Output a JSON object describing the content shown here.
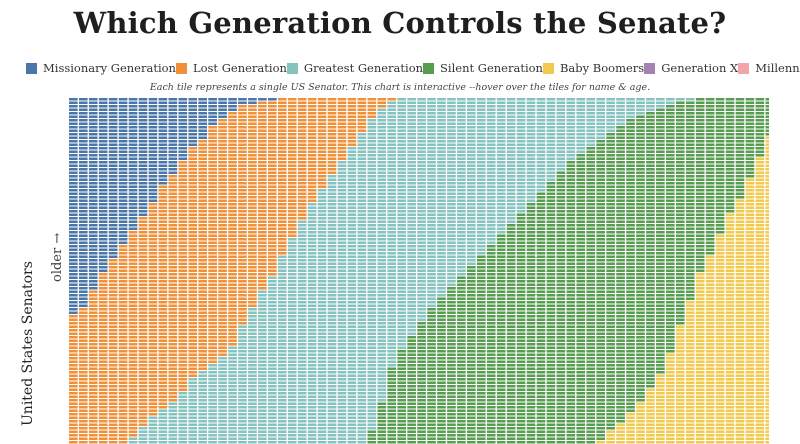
{
  "chart_data": {
    "type": "heatmap",
    "title": "Which Generation Controls the Senate?",
    "subtitle": "Each tile represents a single US Senator. This chart is interactive --hover over the tiles for name & age.",
    "ylabel": "United States Senators",
    "y_direction_label": "older →",
    "grid": false,
    "legend_position": "top",
    "series": [
      {
        "name": "Missionary Generation",
        "color": "#4a77a8"
      },
      {
        "name": "Lost Generation",
        "color": "#f0913a"
      },
      {
        "name": "Greatest Generation",
        "color": "#84c3bf"
      },
      {
        "name": "Silent Generation",
        "color": "#569d4f"
      },
      {
        "name": "Baby Boomers",
        "color": "#f1ca4d"
      },
      {
        "name": "Generation X",
        "color": "#a681b4"
      },
      {
        "name": "Millennials",
        "color": "#f3a6a9"
      }
    ],
    "columns": [
      {
        "Missionary Generation": 62,
        "Lost Generation": 38
      },
      {
        "Missionary Generation": 60,
        "Lost Generation": 40
      },
      {
        "Missionary Generation": 55,
        "Lost Generation": 45
      },
      {
        "Missionary Generation": 50,
        "Lost Generation": 50
      },
      {
        "Missionary Generation": 46,
        "Lost Generation": 54
      },
      {
        "Missionary Generation": 42,
        "Lost Generation": 57,
        "Greatest Generation": 1
      },
      {
        "Missionary Generation": 38,
        "Lost Generation": 59,
        "Greatest Generation": 3
      },
      {
        "Missionary Generation": 34,
        "Lost Generation": 60,
        "Greatest Generation": 6
      },
      {
        "Missionary Generation": 30,
        "Lost Generation": 61,
        "Greatest Generation": 9
      },
      {
        "Missionary Generation": 25,
        "Lost Generation": 64,
        "Greatest Generation": 11
      },
      {
        "Missionary Generation": 22,
        "Lost Generation": 65,
        "Greatest Generation": 13
      },
      {
        "Missionary Generation": 18,
        "Lost Generation": 66,
        "Greatest Generation": 16
      },
      {
        "Missionary Generation": 14,
        "Lost Generation": 66,
        "Greatest Generation": 20
      },
      {
        "Missionary Generation": 12,
        "Lost Generation": 66,
        "Greatest Generation": 22
      },
      {
        "Missionary Generation": 8,
        "Lost Generation": 68,
        "Greatest Generation": 24
      },
      {
        "Missionary Generation": 6,
        "Lost Generation": 68,
        "Greatest Generation": 26
      },
      {
        "Missionary Generation": 4,
        "Lost Generation": 67,
        "Greatest Generation": 29
      },
      {
        "Missionary Generation": 2,
        "Lost Generation": 63,
        "Greatest Generation": 35
      },
      {
        "Missionary Generation": 2,
        "Lost Generation": 58,
        "Greatest Generation": 40
      },
      {
        "Missionary Generation": 1,
        "Lost Generation": 54,
        "Greatest Generation": 45
      },
      {
        "Missionary Generation": 1,
        "Lost Generation": 50,
        "Greatest Generation": 49
      },
      {
        "Lost Generation": 45,
        "Greatest Generation": 55
      },
      {
        "Lost Generation": 40,
        "Greatest Generation": 60
      },
      {
        "Lost Generation": 35,
        "Greatest Generation": 65
      },
      {
        "Lost Generation": 30,
        "Greatest Generation": 70
      },
      {
        "Lost Generation": 26,
        "Greatest Generation": 74
      },
      {
        "Lost Generation": 22,
        "Greatest Generation": 78
      },
      {
        "Lost Generation": 18,
        "Greatest Generation": 82
      },
      {
        "Lost Generation": 14,
        "Greatest Generation": 86
      },
      {
        "Lost Generation": 10,
        "Greatest Generation": 89,
        "Silent Generation": 1
      },
      {
        "Lost Generation": 6,
        "Greatest Generation": 89,
        "Silent Generation": 5
      },
      {
        "Lost Generation": 3,
        "Greatest Generation": 84,
        "Silent Generation": 13
      },
      {
        "Lost Generation": 1,
        "Greatest Generation": 76,
        "Silent Generation": 23
      },
      {
        "Greatest Generation": 72,
        "Silent Generation": 28
      },
      {
        "Greatest Generation": 68,
        "Silent Generation": 32
      },
      {
        "Greatest Generation": 64,
        "Silent Generation": 36
      },
      {
        "Greatest Generation": 60,
        "Silent Generation": 40
      },
      {
        "Greatest Generation": 57,
        "Silent Generation": 43
      },
      {
        "Greatest Generation": 54,
        "Silent Generation": 46
      },
      {
        "Greatest Generation": 51,
        "Silent Generation": 49
      },
      {
        "Greatest Generation": 48,
        "Silent Generation": 52
      },
      {
        "Greatest Generation": 45,
        "Silent Generation": 55
      },
      {
        "Greatest Generation": 42,
        "Silent Generation": 58
      },
      {
        "Greatest Generation": 39,
        "Silent Generation": 61
      },
      {
        "Greatest Generation": 36,
        "Silent Generation": 64
      },
      {
        "Greatest Generation": 33,
        "Silent Generation": 67
      },
      {
        "Greatest Generation": 30,
        "Silent Generation": 70
      },
      {
        "Greatest Generation": 27,
        "Silent Generation": 73
      },
      {
        "Greatest Generation": 24,
        "Silent Generation": 76
      },
      {
        "Greatest Generation": 21,
        "Silent Generation": 79
      },
      {
        "Greatest Generation": 18,
        "Silent Generation": 82
      },
      {
        "Greatest Generation": 16,
        "Silent Generation": 84
      },
      {
        "Greatest Generation": 14,
        "Silent Generation": 86
      },
      {
        "Greatest Generation": 12,
        "Silent Generation": 86,
        "Baby Boomers": 2
      },
      {
        "Greatest Generation": 10,
        "Silent Generation": 85,
        "Baby Boomers": 5
      },
      {
        "Greatest Generation": 8,
        "Silent Generation": 85,
        "Baby Boomers": 7
      },
      {
        "Greatest Generation": 6,
        "Silent Generation": 84,
        "Baby Boomers": 10
      },
      {
        "Greatest Generation": 5,
        "Silent Generation": 82,
        "Baby Boomers": 13
      },
      {
        "Greatest Generation": 4,
        "Silent Generation": 79,
        "Baby Boomers": 17
      },
      {
        "Greatest Generation": 3,
        "Silent Generation": 76,
        "Baby Boomers": 21
      },
      {
        "Greatest Generation": 2,
        "Silent Generation": 71,
        "Baby Boomers": 27
      },
      {
        "Greatest Generation": 1,
        "Silent Generation": 64,
        "Baby Boomers": 35
      },
      {
        "Greatest Generation": 1,
        "Silent Generation": 57,
        "Baby Boomers": 42
      },
      {
        "Silent Generation": 50,
        "Baby Boomers": 50
      },
      {
        "Silent Generation": 45,
        "Baby Boomers": 55
      },
      {
        "Silent Generation": 39,
        "Baby Boomers": 61
      },
      {
        "Silent Generation": 33,
        "Baby Boomers": 67
      },
      {
        "Silent Generation": 29,
        "Baby Boomers": 71
      },
      {
        "Silent Generation": 23,
        "Baby Boomers": 77
      },
      {
        "Silent Generation": 17,
        "Baby Boomers": 83
      },
      {
        "Silent Generation": 11,
        "Baby Boomers": 89
      }
    ]
  }
}
